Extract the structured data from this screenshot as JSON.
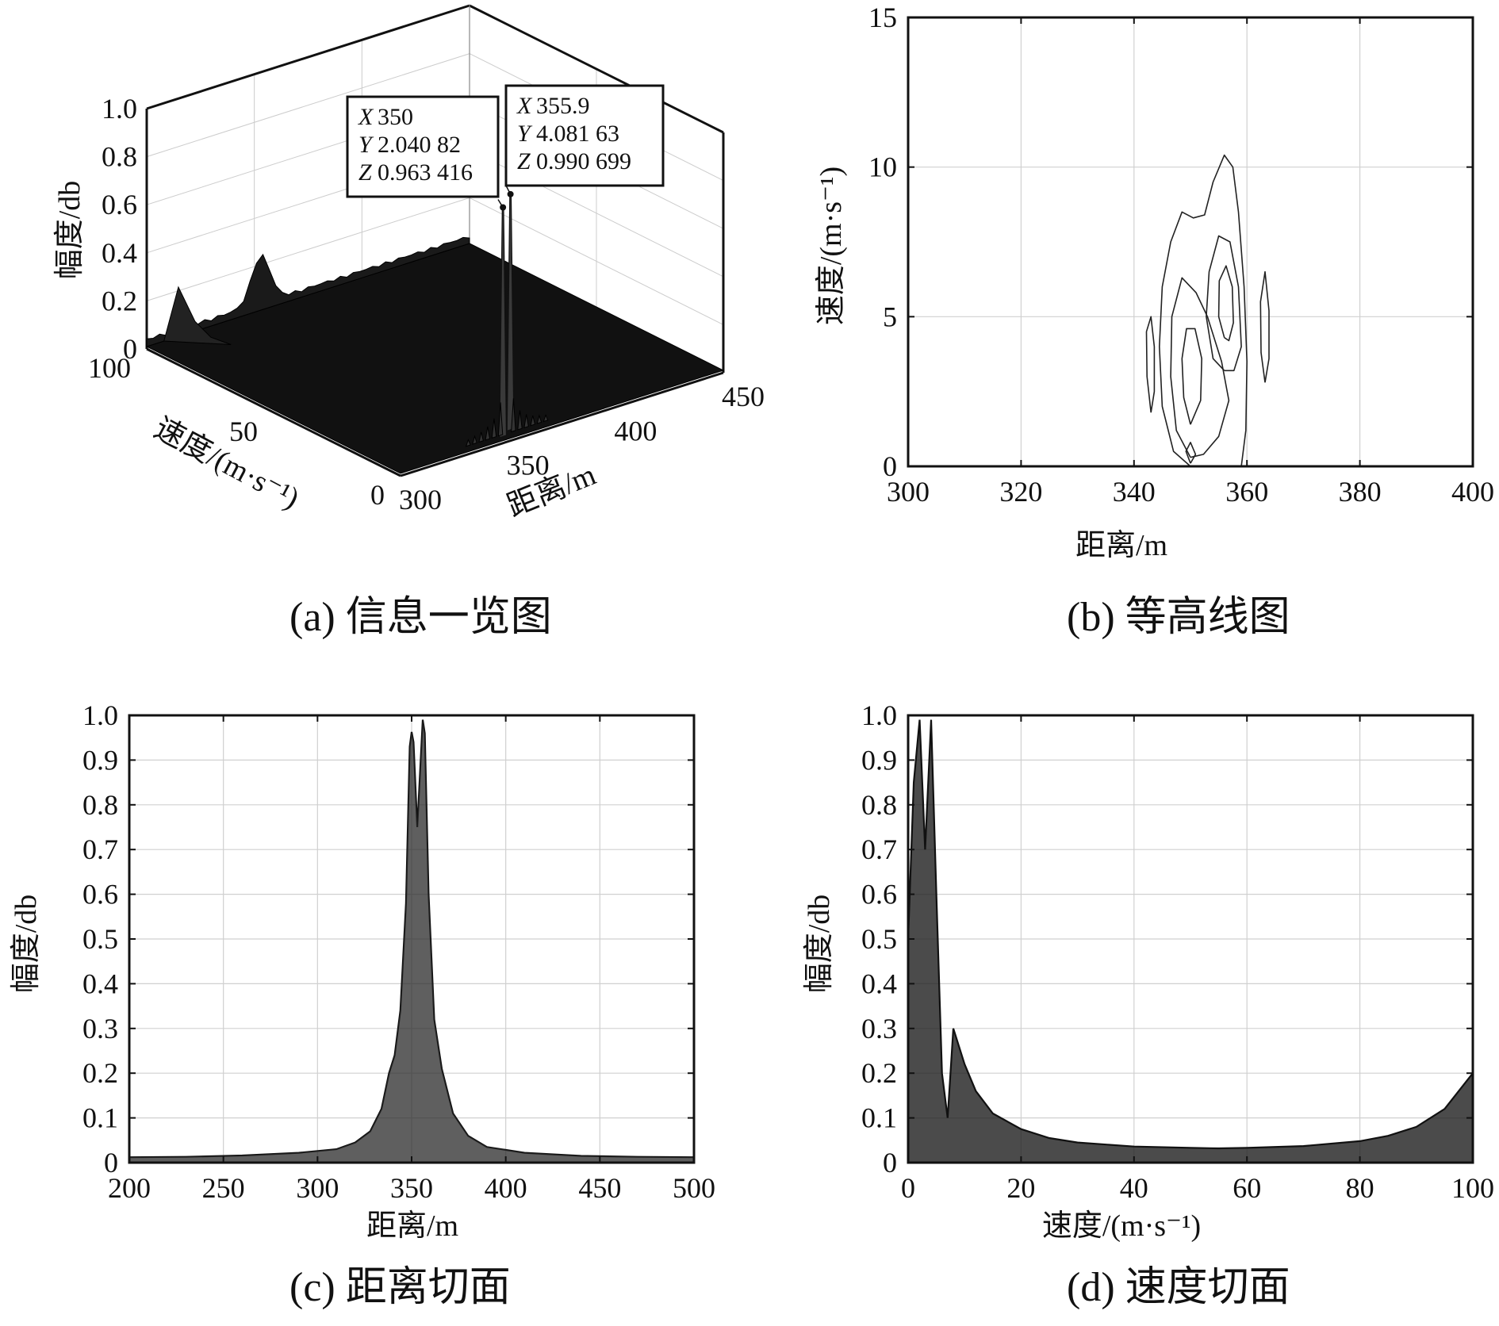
{
  "captions": {
    "a": "(a) 信息一览图",
    "b": "(b) 等高线图",
    "c": "(c) 距离切面",
    "d": "(d) 速度切面"
  },
  "chart_data": [
    {
      "id": "a",
      "type": "surface",
      "xlabel": "距离/m",
      "ylabel": "速度/(m·s⁻¹)",
      "zlabel": "幅度/db",
      "xlim": [
        300,
        450
      ],
      "ylim": [
        0,
        100
      ],
      "zlim": [
        0,
        1.0
      ],
      "x_ticks": [
        "300",
        "350",
        "400",
        "450"
      ],
      "y_ticks": [
        "0",
        "50",
        "100"
      ],
      "z_ticks": [
        "0",
        "0.2",
        "0.4",
        "0.6",
        "0.8",
        "1.0"
      ],
      "peaks": [
        {
          "x": 350,
          "y": 2.04082,
          "z": 0.963416
        },
        {
          "x": 355.9,
          "y": 4.08163,
          "z": 0.990699
        }
      ],
      "secondary_ridge": {
        "y": 100,
        "z": 0.25
      },
      "datatips": [
        {
          "x_label": "X",
          "x_value": "350",
          "y_label": "Y",
          "y_value": "2.040 82",
          "z_label": "Z",
          "z_value": "0.963 416"
        },
        {
          "x_label": "X",
          "x_value": "355.9",
          "y_label": "Y",
          "y_value": "4.081 63",
          "z_label": "Z",
          "z_value": "0.990 699"
        }
      ]
    },
    {
      "id": "b",
      "type": "contour",
      "xlabel": "距离/m",
      "ylabel": "速度/(m·s⁻¹)",
      "xlim": [
        300,
        400
      ],
      "ylim": [
        0,
        15
      ],
      "x_ticks": [
        "300",
        "320",
        "340",
        "360",
        "380",
        "400"
      ],
      "y_ticks": [
        "0",
        "5",
        "10",
        "15"
      ],
      "contours": [
        {
          "name": "main-left-outer",
          "points": [
            [
              350,
              -0.3
            ],
            [
              347,
              0.5
            ],
            [
              345,
              2
            ],
            [
              344.5,
              4
            ],
            [
              345,
              6
            ],
            [
              346.5,
              7.5
            ],
            [
              348.5,
              8.5
            ],
            [
              350.5,
              8.3
            ],
            [
              352.5,
              8.4
            ],
            [
              354,
              9.5
            ],
            [
              356,
              10.4
            ],
            [
              357.5,
              10
            ],
            [
              358.5,
              8.5
            ],
            [
              359.5,
              6
            ],
            [
              360,
              3.5
            ],
            [
              359.8,
              1.2
            ],
            [
              359,
              -0.3
            ]
          ]
        },
        {
          "name": "main-right-ring",
          "points": [
            [
              356,
              3.2
            ],
            [
              354,
              3.6
            ],
            [
              352.8,
              5
            ],
            [
              353.3,
              6.5
            ],
            [
              355,
              7.7
            ],
            [
              357,
              7.5
            ],
            [
              358.5,
              6
            ],
            [
              359,
              4
            ],
            [
              357.7,
              3.2
            ],
            [
              356,
              3.2
            ]
          ]
        },
        {
          "name": "main-right-inner",
          "points": [
            [
              356,
              4.3
            ],
            [
              355,
              5
            ],
            [
              355.1,
              6.2
            ],
            [
              356.3,
              6.7
            ],
            [
              357.4,
              6
            ],
            [
              357.6,
              4.8
            ],
            [
              356.8,
              4.2
            ],
            [
              356,
              4.3
            ]
          ]
        },
        {
          "name": "main-left-ring",
          "points": [
            [
              350,
              0.3
            ],
            [
              347.5,
              1.2
            ],
            [
              346.5,
              3
            ],
            [
              346.7,
              5
            ],
            [
              348.5,
              6.3
            ],
            [
              351,
              5.8
            ],
            [
              353,
              5
            ],
            [
              355.5,
              3.5
            ],
            [
              356.8,
              2.2
            ],
            [
              355,
              1
            ],
            [
              352.3,
              0.4
            ],
            [
              350,
              0.3
            ]
          ]
        },
        {
          "name": "main-left-inner",
          "points": [
            [
              350,
              1.4
            ],
            [
              348.8,
              2.3
            ],
            [
              348.5,
              3.6
            ],
            [
              349.3,
              4.6
            ],
            [
              350.8,
              4.6
            ],
            [
              352,
              3.6
            ],
            [
              351.8,
              2.2
            ],
            [
              350,
              1.4
            ]
          ]
        },
        {
          "name": "main-center",
          "points": [
            [
              350,
              0.1
            ],
            [
              349.2,
              0.5
            ],
            [
              350,
              0.8
            ],
            [
              350.9,
              0.4
            ],
            [
              350,
              0.1
            ]
          ]
        },
        {
          "name": "side-left",
          "points": [
            [
              343,
              1.8
            ],
            [
              342.3,
              3
            ],
            [
              342.2,
              4.5
            ],
            [
              343,
              5
            ],
            [
              343.6,
              4
            ],
            [
              343.6,
              2.5
            ],
            [
              343,
              1.8
            ]
          ]
        },
        {
          "name": "side-right",
          "points": [
            [
              363.2,
              2.8
            ],
            [
              362.5,
              3.8
            ],
            [
              362.4,
              5.5
            ],
            [
              363.2,
              6.5
            ],
            [
              363.9,
              5.2
            ],
            [
              363.9,
              3.6
            ],
            [
              363.2,
              2.8
            ]
          ]
        }
      ]
    },
    {
      "id": "c",
      "type": "line",
      "xlabel": "距离/m",
      "ylabel": "幅度/db",
      "xlim": [
        200,
        500
      ],
      "ylim": [
        0,
        1.0
      ],
      "x_ticks": [
        "200",
        "250",
        "300",
        "350",
        "400",
        "450",
        "500"
      ],
      "y_ticks": [
        "0",
        "0.1",
        "0.2",
        "0.3",
        "0.4",
        "0.5",
        "0.6",
        "0.7",
        "0.8",
        "0.9",
        "1.0"
      ],
      "x": [
        200,
        230,
        260,
        290,
        310,
        320,
        328,
        334,
        338,
        341,
        344,
        347,
        349,
        350,
        351,
        353,
        355.9,
        357,
        359,
        362,
        366,
        372,
        380,
        390,
        410,
        440,
        470,
        500
      ],
      "series": [
        {
          "values": [
            0.012,
            0.013,
            0.016,
            0.022,
            0.03,
            0.045,
            0.07,
            0.12,
            0.2,
            0.24,
            0.34,
            0.58,
            0.93,
            0.963,
            0.94,
            0.75,
            0.99,
            0.96,
            0.6,
            0.32,
            0.21,
            0.11,
            0.06,
            0.035,
            0.022,
            0.015,
            0.013,
            0.012
          ]
        }
      ]
    },
    {
      "id": "d",
      "type": "line",
      "xlabel": "速度/(m·s⁻¹)",
      "ylabel": "幅度/db",
      "xlim": [
        0,
        100
      ],
      "ylim": [
        0,
        1.0
      ],
      "x_ticks": [
        "0",
        "20",
        "40",
        "60",
        "80",
        "100"
      ],
      "y_ticks": [
        "0",
        "0.1",
        "0.2",
        "0.3",
        "0.4",
        "0.5",
        "0.6",
        "0.7",
        "0.8",
        "0.9",
        "1.0"
      ],
      "x": [
        0,
        1,
        2.04,
        3,
        4.08,
        5,
        6,
        7,
        8,
        10,
        12,
        15,
        20,
        25,
        30,
        40,
        50,
        55,
        60,
        70,
        80,
        85,
        90,
        95,
        100
      ],
      "series": [
        {
          "values": [
            0.5,
            0.85,
            0.99,
            0.7,
            0.99,
            0.6,
            0.2,
            0.1,
            0.3,
            0.22,
            0.16,
            0.11,
            0.075,
            0.055,
            0.045,
            0.036,
            0.033,
            0.032,
            0.033,
            0.037,
            0.048,
            0.06,
            0.08,
            0.12,
            0.2
          ]
        }
      ]
    }
  ]
}
